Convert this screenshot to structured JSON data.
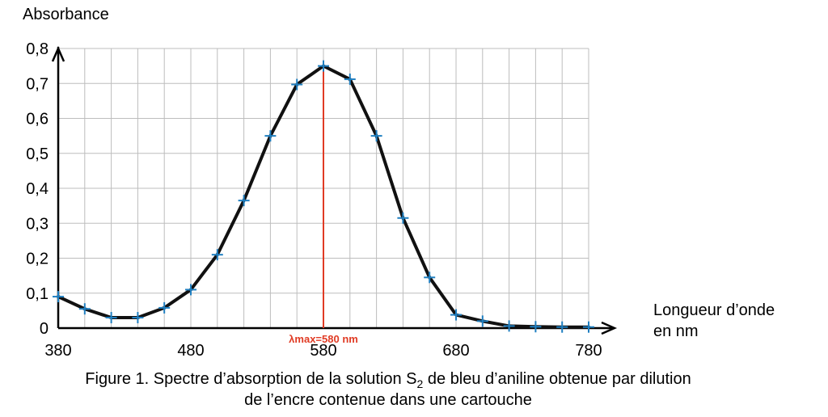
{
  "chart_data": {
    "type": "line",
    "ylabel": "Absorbance",
    "xlabel_line1": "Longueur d’onde",
    "xlabel_line2": "en nm",
    "x_tick_labels": [
      "380",
      "480",
      "580",
      "680",
      "780"
    ],
    "y_tick_labels": [
      "0",
      "0,1",
      "0,2",
      "0,3",
      "0,4",
      "0,5",
      "0,6",
      "0,7",
      "0,8"
    ],
    "xlim": [
      380,
      780
    ],
    "ylim": [
      0,
      0.8
    ],
    "grid": true,
    "x_grid_step": 20,
    "y_grid_step": 0.1,
    "series": [
      {
        "x": [
          380,
          400,
          420,
          440,
          460,
          480,
          500,
          520,
          540,
          560,
          580,
          600,
          620,
          640,
          660,
          680,
          700,
          720,
          740,
          760,
          780
        ],
        "y": [
          0.09,
          0.055,
          0.03,
          0.03,
          0.058,
          0.11,
          0.21,
          0.365,
          0.55,
          0.697,
          0.75,
          0.712,
          0.55,
          0.315,
          0.145,
          0.038,
          0.02,
          0.006,
          0.004,
          0.003,
          0.003
        ]
      }
    ],
    "annotation": {
      "x": 580,
      "label": "λmax=580 nm"
    },
    "colors": {
      "curve": "#111111",
      "marker": "#1f7fc1",
      "vline": "#e03b24",
      "grid": "#bdbdbd",
      "axis": "#000000"
    }
  },
  "caption": {
    "line1_part1": "Figure 1. Spectre d’absorption de la solution S",
    "line1_sub": "2",
    "line1_part2": " de bleu d’aniline obtenue par dilution",
    "line2": "de l’encre contenue dans une cartouche"
  }
}
